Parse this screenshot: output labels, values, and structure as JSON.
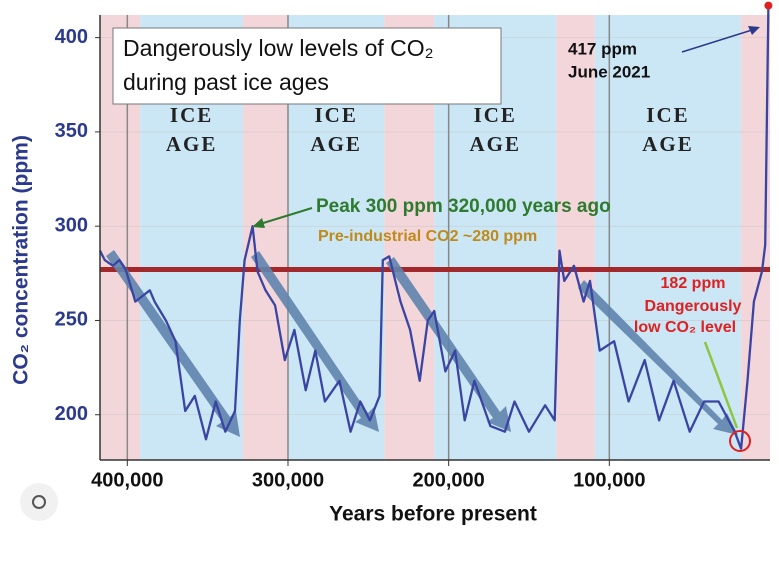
{
  "chart_data": {
    "type": "line",
    "title_lines": [
      "Dangerously low levels of CO₂",
      "during past ice ages"
    ],
    "x_label": "Years before present",
    "y_label": "CO₂ concentration (ppm)",
    "xlim": [
      417000,
      0
    ],
    "ylim": [
      176,
      412
    ],
    "xticks": [
      {
        "value": 400000,
        "label": "400,000"
      },
      {
        "value": 300000,
        "label": "300,000"
      },
      {
        "value": 200000,
        "label": "200,000"
      },
      {
        "value": 100000,
        "label": "100,000"
      }
    ],
    "yticks": [
      200,
      250,
      300,
      350,
      400
    ],
    "grid": true,
    "bands": [
      {
        "start": 417000,
        "end": 392000,
        "color": "#f3d6da"
      },
      {
        "start": 392000,
        "end": 328000,
        "color": "#cbe7f5",
        "label_lines": [
          "ICE",
          "AGE"
        ]
      },
      {
        "start": 328000,
        "end": 300000,
        "color": "#f3d6da"
      },
      {
        "start": 300000,
        "end": 240000,
        "color": "#cbe7f5",
        "label_lines": [
          "ICE",
          "AGE"
        ]
      },
      {
        "start": 240000,
        "end": 209000,
        "color": "#f3d6da"
      },
      {
        "start": 209000,
        "end": 133000,
        "color": "#cbe7f5",
        "label_lines": [
          "ICE",
          "AGE"
        ]
      },
      {
        "start": 133000,
        "end": 109000,
        "color": "#f3d6da"
      },
      {
        "start": 109000,
        "end": 18000,
        "color": "#cbe7f5",
        "label_lines": [
          "ICE",
          "AGE"
        ]
      },
      {
        "start": 18000,
        "end": 0,
        "color": "#f3d6da"
      }
    ],
    "reference_line": {
      "value": 277,
      "color": "#a3282b"
    },
    "series": [
      {
        "name": "CO₂",
        "color": "#3a44a3",
        "x": [
          417000,
          414000,
          409000,
          405000,
          401000,
          395000,
          386000,
          383000,
          376000,
          370000,
          364000,
          358000,
          351000,
          345000,
          339000,
          333000,
          330000,
          327000,
          322000,
          319000,
          314000,
          308000,
          302000,
          296000,
          289000,
          283000,
          277000,
          268000,
          261000,
          255000,
          249000,
          243000,
          241000,
          237000,
          230000,
          224000,
          218000,
          213000,
          209000,
          202000,
          196000,
          190000,
          184000,
          174000,
          165000,
          159000,
          150000,
          140000,
          134000,
          131000,
          128000,
          122000,
          116000,
          112000,
          106000,
          97000,
          88000,
          78000,
          69000,
          60000,
          50000,
          41000,
          32000,
          22000,
          18000,
          14000,
          10000,
          5000,
          3000,
          1000
        ],
        "values": [
          287,
          282,
          279,
          282,
          277,
          260,
          266,
          260,
          250,
          239,
          202,
          210,
          187,
          207,
          191,
          202,
          250,
          282,
          300,
          276,
          266,
          258,
          229,
          245,
          213,
          234,
          207,
          218,
          191,
          207,
          197,
          210,
          282,
          284,
          260,
          245,
          218,
          250,
          255,
          223,
          234,
          197,
          218,
          194,
          191,
          207,
          191,
          205,
          197,
          287,
          271,
          279,
          260,
          271,
          234,
          239,
          207,
          229,
          197,
          218,
          191,
          207,
          207,
          191,
          182,
          218,
          260,
          276,
          290,
          417
        ]
      }
    ],
    "annotations": {
      "current": [
        "417 ppm",
        "June 2021"
      ],
      "peak": "Peak 300 ppm 320,000 years ago",
      "preindustrial": "Pre-industrial CO2 ~280 ppm",
      "low": [
        "182 ppm",
        "Dangerously",
        "low CO₂ level"
      ]
    }
  }
}
